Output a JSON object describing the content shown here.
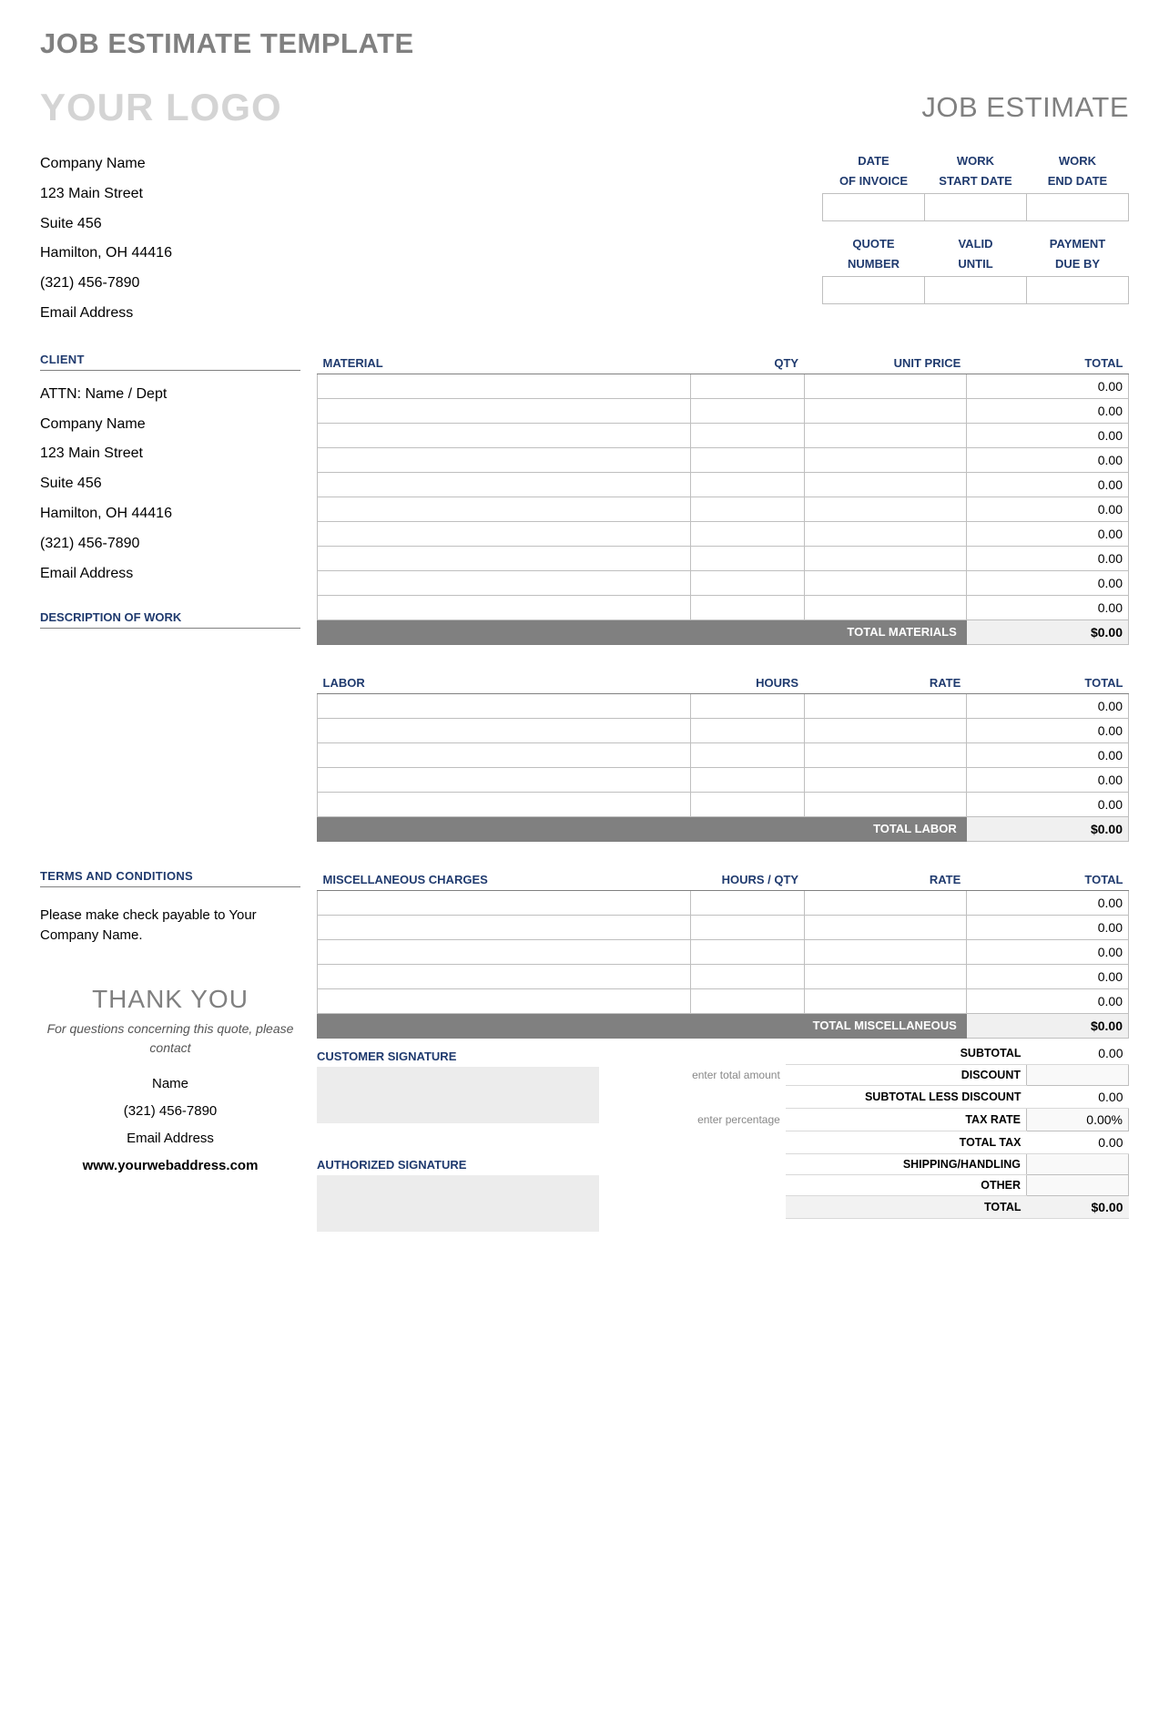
{
  "page_title": "JOB ESTIMATE TEMPLATE",
  "logo_text": "YOUR LOGO",
  "doc_label": "JOB ESTIMATE",
  "company": {
    "name": "Company Name",
    "line1": "123 Main Street",
    "line2": "Suite 456",
    "line3": "Hamilton, OH  44416",
    "phone": "(321) 456-7890",
    "email": "Email Address"
  },
  "date_headers": {
    "r1c1a": "DATE",
    "r1c1b": "OF INVOICE",
    "r1c2a": "WORK",
    "r1c2b": "START DATE",
    "r1c3a": "WORK",
    "r1c3b": "END DATE",
    "r2c1a": "QUOTE",
    "r2c1b": "NUMBER",
    "r2c2a": "VALID",
    "r2c2b": "UNTIL",
    "r2c3a": "PAYMENT",
    "r2c3b": "DUE BY"
  },
  "labels": {
    "client": "CLIENT",
    "material": "MATERIAL",
    "qty": "QTY",
    "unit_price": "UNIT PRICE",
    "total": "TOTAL",
    "desc_work": "DESCRIPTION OF WORK",
    "total_materials": "TOTAL MATERIALS",
    "labor": "LABOR",
    "hours": "HOURS",
    "rate": "RATE",
    "total_labor": "TOTAL LABOR",
    "terms": "TERMS AND CONDITIONS",
    "misc": "MISCELLANEOUS CHARGES",
    "hours_qty": "HOURS / QTY",
    "total_misc": "TOTAL MISCELLANEOUS",
    "subtotal": "SUBTOTAL",
    "discount": "DISCOUNT",
    "enter_total": "enter total amount",
    "subtotal_less": "SUBTOTAL LESS DISCOUNT",
    "tax_rate": "TAX RATE",
    "enter_pct": "enter percentage",
    "total_tax": "TOTAL TAX",
    "shipping": "SHIPPING/HANDLING",
    "other": "OTHER",
    "grand_total": "TOTAL",
    "cust_sig": "CUSTOMER SIGNATURE",
    "auth_sig": "AUTHORIZED SIGNATURE",
    "thank_you": "THANK YOU"
  },
  "client": {
    "attn": "ATTN: Name / Dept",
    "company": "Company Name",
    "line1": "123 Main Street",
    "line2": "Suite 456",
    "line3": "Hamilton, OH  44416",
    "phone": "(321) 456-7890",
    "email": "Email Address"
  },
  "materials": {
    "rows": [
      "0.00",
      "0.00",
      "0.00",
      "0.00",
      "0.00",
      "0.00",
      "0.00",
      "0.00",
      "0.00",
      "0.00"
    ],
    "total": "$0.00"
  },
  "labor": {
    "rows": [
      "0.00",
      "0.00",
      "0.00",
      "0.00",
      "0.00"
    ],
    "total": "$0.00"
  },
  "misc": {
    "rows": [
      "0.00",
      "0.00",
      "0.00",
      "0.00",
      "0.00"
    ],
    "total": "$0.00"
  },
  "terms_text": "Please make check payable to Your Company Name.",
  "contact": {
    "note": "For questions concerning this quote, please contact",
    "name": "Name",
    "phone": "(321) 456-7890",
    "email": "Email Address",
    "web": "www.yourwebaddress.com"
  },
  "summary": {
    "subtotal": "0.00",
    "discount": "",
    "subtotal_less": "0.00",
    "tax_rate": "0.00%",
    "total_tax": "0.00",
    "shipping": "",
    "other": "",
    "total": "$0.00"
  }
}
